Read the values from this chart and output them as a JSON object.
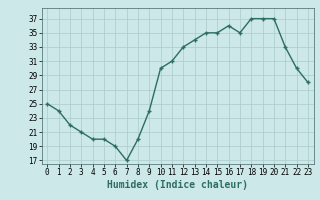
{
  "x": [
    0,
    1,
    2,
    3,
    4,
    5,
    6,
    7,
    8,
    9,
    10,
    11,
    12,
    13,
    14,
    15,
    16,
    17,
    18,
    19,
    20,
    21,
    22,
    23
  ],
  "y": [
    25,
    24,
    22,
    21,
    20,
    20,
    19,
    17,
    20,
    24,
    30,
    31,
    33,
    34,
    35,
    35,
    36,
    35,
    37,
    37,
    37,
    33,
    30,
    28
  ],
  "line_color": "#2d6e5e",
  "marker_color": "#2d6e5e",
  "bg_color": "#cce8e8",
  "grid_color": "#aacccc",
  "xlabel": "Humidex (Indice chaleur)",
  "xlabel_fontsize": 7,
  "ylim": [
    16.5,
    38.5
  ],
  "xlim": [
    -0.5,
    23.5
  ],
  "yticks": [
    17,
    19,
    21,
    23,
    25,
    27,
    29,
    31,
    33,
    35,
    37
  ],
  "xticks": [
    0,
    1,
    2,
    3,
    4,
    5,
    6,
    7,
    8,
    9,
    10,
    11,
    12,
    13,
    14,
    15,
    16,
    17,
    18,
    19,
    20,
    21,
    22,
    23
  ],
  "tick_fontsize": 5.5,
  "marker_size": 2.5,
  "line_width": 1.0
}
